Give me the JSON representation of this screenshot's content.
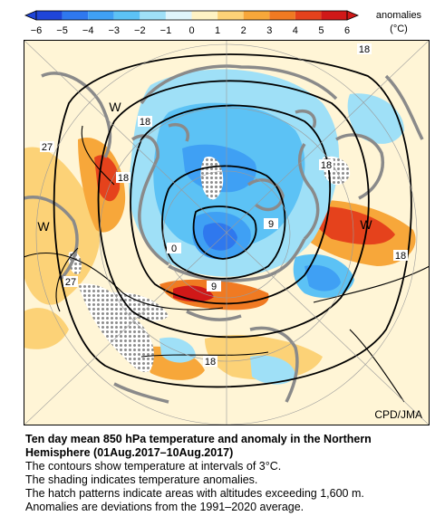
{
  "colorbar": {
    "ticks": [
      "−6",
      "−5",
      "−4",
      "−3",
      "−2",
      "−1",
      "0",
      "1",
      "2",
      "3",
      "4",
      "5",
      "6"
    ],
    "colors": [
      "#1f45d8",
      "#2f78ee",
      "#3fa0f4",
      "#5cc2f5",
      "#9fe0f7",
      "#dff5fb",
      "#fff3c4",
      "#fcd277",
      "#f7a73a",
      "#f07a22",
      "#e5421c",
      "#d01818"
    ],
    "unit_label": "anomalies",
    "unit": "(°C)"
  },
  "map": {
    "contour_labels": [
      "18",
      "18",
      "27",
      "18",
      "W",
      "W",
      "27",
      "18",
      "9",
      "0",
      "9",
      "18",
      "18",
      "W"
    ],
    "credit": "CPD/JMA",
    "hatch_color": "#8c8c8c",
    "land_outline_color": "#8a8a8a"
  },
  "caption": {
    "title_line1": "Ten day mean 850 hPa temperature and anomaly in the Northern",
    "title_line2": "Hemisphere (01Aug.2017–10Aug.2017)",
    "lines": [
      "The contours show temperature at intervals of 3°C.",
      "The shading indicates temperature anomalies.",
      "The hatch patterns indicate areas with altitudes exceeding 1,600 m.",
      "Anomalies are deviations from the 1991–2020 average."
    ]
  }
}
